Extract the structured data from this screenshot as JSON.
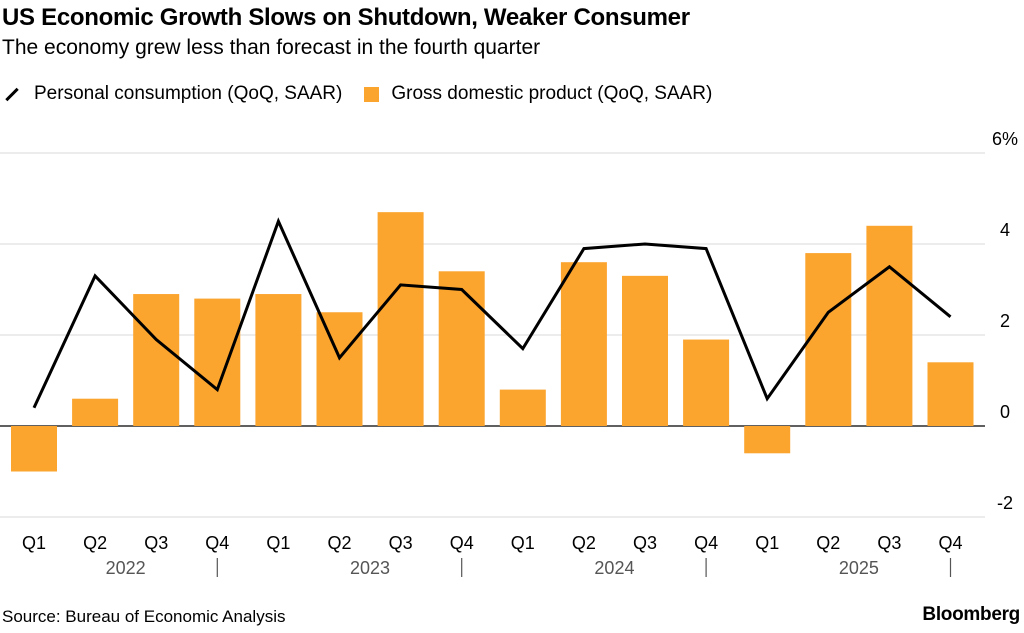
{
  "header": {
    "title": "US Economic Growth Slows on Shutdown, Weaker Consumer",
    "subtitle": "The economy grew less than forecast in the fourth quarter"
  },
  "legend": {
    "line_label": "Personal consumption (QoQ, SAAR)",
    "bar_label": "Gross domestic product (QoQ, SAAR)"
  },
  "footer": {
    "source": "Source: Bureau of Economic Analysis",
    "brand": "Bloomberg"
  },
  "colors": {
    "bar": "#FBA42E",
    "line": "#000000",
    "grid": "#d9d9d9",
    "axis_text": "#000000",
    "year_text": "#555555"
  },
  "chart_data": {
    "type": "bar",
    "title": "US Economic Growth Slows on Shutdown, Weaker Consumer",
    "categories": [
      "Q1",
      "Q2",
      "Q3",
      "Q4",
      "Q1",
      "Q2",
      "Q3",
      "Q4",
      "Q1",
      "Q2",
      "Q3",
      "Q4",
      "Q1",
      "Q2",
      "Q3",
      "Q4"
    ],
    "years": [
      "2022",
      "2023",
      "2024",
      "2025"
    ],
    "series": [
      {
        "name": "Gross domestic product (QoQ, SAAR)",
        "type": "bar",
        "values": [
          -1.0,
          0.6,
          2.9,
          2.8,
          2.9,
          2.5,
          4.7,
          3.4,
          0.8,
          3.6,
          3.3,
          1.9,
          -0.6,
          3.8,
          4.4,
          1.4
        ]
      },
      {
        "name": "Personal consumption (QoQ, SAAR)",
        "type": "line",
        "values": [
          0.4,
          3.3,
          1.9,
          0.8,
          4.5,
          1.5,
          3.1,
          3.0,
          1.7,
          3.9,
          4.0,
          3.9,
          0.6,
          2.5,
          3.5,
          2.4
        ]
      }
    ],
    "yticks": [
      -2,
      0,
      2,
      4,
      6
    ],
    "ytick_labels": [
      "-2",
      "0",
      "2",
      "4",
      "6%"
    ],
    "ylim": [
      -2,
      6
    ],
    "xlabel": "",
    "ylabel": "",
    "grid": true
  }
}
